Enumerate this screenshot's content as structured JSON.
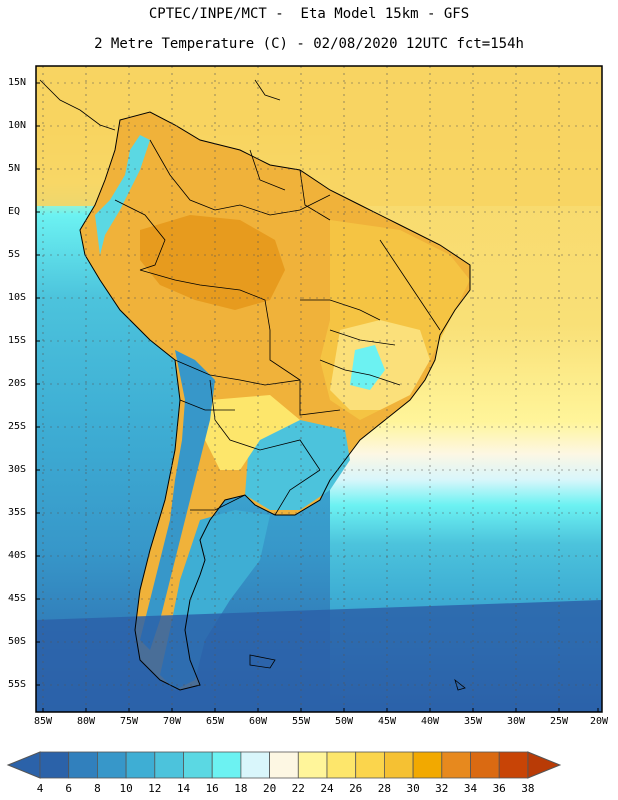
{
  "header": {
    "line1": "CPTEC/INPE/MCT -  Eta Model 15km - GFS",
    "line2": "2 Metre Temperature (C) - 02/08/2020 12UTC fct=154h"
  },
  "map": {
    "lat_labels": [
      "15N",
      "10N",
      "5N",
      "EQ",
      "5S",
      "10S",
      "15S",
      "20S",
      "25S",
      "30S",
      "35S",
      "40S",
      "45S",
      "50S",
      "55S"
    ],
    "lon_labels": [
      "85W",
      "80W",
      "75W",
      "70W",
      "65W",
      "60W",
      "55W",
      "50W",
      "45W",
      "40W",
      "35W",
      "30W",
      "25W",
      "20W"
    ]
  },
  "colorbar": {
    "values": [
      "4",
      "6",
      "8",
      "10",
      "12",
      "14",
      "16",
      "18",
      "20",
      "22",
      "24",
      "26",
      "28",
      "30",
      "32",
      "34",
      "36",
      "38"
    ],
    "colors": [
      "#2b62a9",
      "#3180bd",
      "#3797c9",
      "#3eaed4",
      "#4cc3dc",
      "#5bd8e3",
      "#6cf2f2",
      "#d9f6fb",
      "#fdf7e3",
      "#fff59a",
      "#fde66b",
      "#fbd54c",
      "#f5c133",
      "#f2a900",
      "#e7891e",
      "#da6a12",
      "#c84406",
      "#b93b06"
    ]
  }
}
